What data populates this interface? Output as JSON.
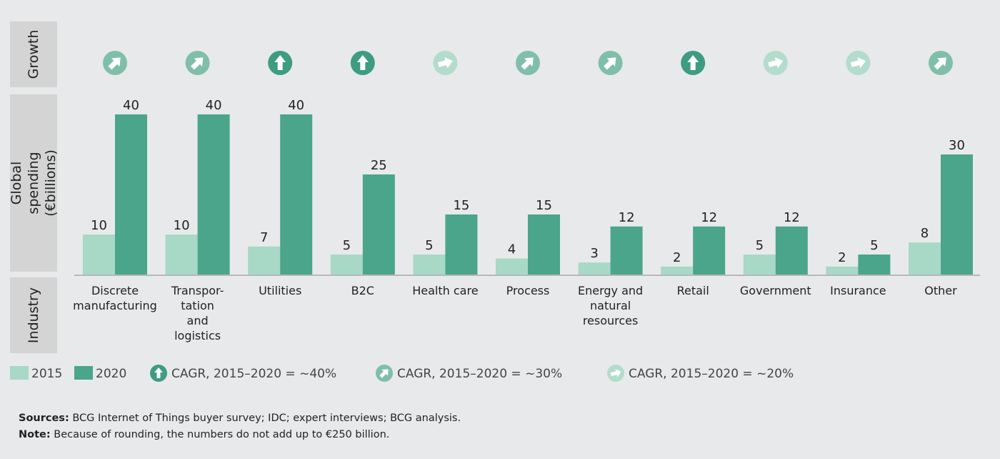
{
  "row_labels": {
    "growth": "Growth",
    "spending": "Global spending\n(€billions)",
    "industry": "Industry"
  },
  "colors": {
    "s2015": "#a8d8c6",
    "s2020": "#4aa58a",
    "growth40": "#3d9c82",
    "growth30": "#7fbfa9",
    "growth20": "#b2dccb"
  },
  "chart_data": {
    "type": "bar",
    "categories": [
      "Discrete\nmanufacturing",
      "Transpor-\ntation\nand\nlogistics",
      "Utilities",
      "B2C",
      "Health care",
      "Process",
      "Energy and\nnatural\nresources",
      "Retail",
      "Government",
      "Insurance",
      "Other"
    ],
    "series": [
      {
        "name": "2015",
        "values": [
          10,
          10,
          7,
          5,
          5,
          4,
          3,
          2,
          5,
          2,
          8
        ]
      },
      {
        "name": "2020",
        "values": [
          40,
          40,
          40,
          25,
          15,
          15,
          12,
          12,
          12,
          5,
          30
        ]
      }
    ],
    "growth": [
      "~30%",
      "~30%",
      "~40%",
      "~40%",
      "~20%",
      "~30%",
      "~30%",
      "~40%",
      "~20%",
      "~20%",
      "~30%"
    ],
    "ylabel": "Global spending\n(€billions)",
    "ylim": [
      0,
      40
    ],
    "grid": false,
    "legend_position": "bottom"
  },
  "legend": {
    "s2015": "2015",
    "s2020": "2020",
    "g40": "CAGR, 2015–2020 = ~40%",
    "g30": "CAGR, 2015–2020 = ~30%",
    "g20": "CAGR, 2015–2020 = ~20%"
  },
  "notes": {
    "sources_label": "Sources:",
    "sources_text": " BCG Internet of Things buyer survey; IDC; expert interviews; BCG analysis.",
    "note_label": "Note:",
    "note_text": " Because of rounding, the numbers do not add up to €250 billion."
  }
}
